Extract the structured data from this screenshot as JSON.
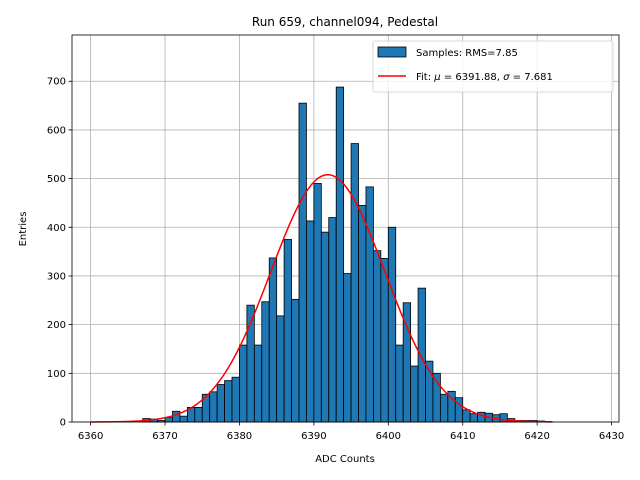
{
  "chart_data": {
    "type": "bar",
    "title": "Run 659, channel094, Pedestal",
    "xlabel": "ADC Counts",
    "ylabel": "Entries",
    "xlim": [
      6357.5,
      6431.0
    ],
    "ylim": [
      0,
      795
    ],
    "xticks": [
      6360,
      6370,
      6380,
      6390,
      6400,
      6410,
      6420,
      6430
    ],
    "yticks": [
      0,
      100,
      200,
      300,
      400,
      500,
      600,
      700
    ],
    "grid": true,
    "legend_position": "top-right",
    "bar_color": "#1f77b4",
    "fit_color": "#ff0000",
    "histogram": {
      "name": "Samples: RMS=7.85",
      "bin_width": 1,
      "bin_starts": [
        6367,
        6368,
        6369,
        6370,
        6371,
        6372,
        6373,
        6374,
        6375,
        6376,
        6377,
        6378,
        6379,
        6380,
        6381,
        6382,
        6383,
        6384,
        6385,
        6386,
        6387,
        6388,
        6389,
        6390,
        6391,
        6392,
        6393,
        6394,
        6395,
        6396,
        6397,
        6398,
        6399,
        6400,
        6401,
        6402,
        6403,
        6404,
        6405,
        6406,
        6407,
        6408,
        6409,
        6410,
        6411,
        6412,
        6413,
        6414,
        6415,
        6416,
        6417,
        6418,
        6419,
        6420,
        6421
      ],
      "values": [
        7,
        6,
        3,
        9,
        22,
        12,
        30,
        30,
        57,
        62,
        77,
        85,
        92,
        158,
        240,
        158,
        247,
        337,
        218,
        375,
        252,
        655,
        413,
        490,
        390,
        420,
        688,
        305,
        572,
        445,
        483,
        352,
        336,
        400,
        158,
        245,
        115,
        275,
        125,
        100,
        57,
        63,
        50,
        25,
        17,
        20,
        18,
        15,
        17,
        7,
        3,
        3,
        3,
        2,
        1
      ]
    },
    "fit": {
      "name_prefix": "Fit: ",
      "name_mu": "μ",
      "name_mid": " = 6391.88, ",
      "name_sigma": "σ",
      "name_suffix": " = 7.681",
      "mu": 6391.88,
      "sigma": 7.681,
      "amplitude": 508,
      "x_range": [
        6360,
        6422
      ]
    }
  }
}
